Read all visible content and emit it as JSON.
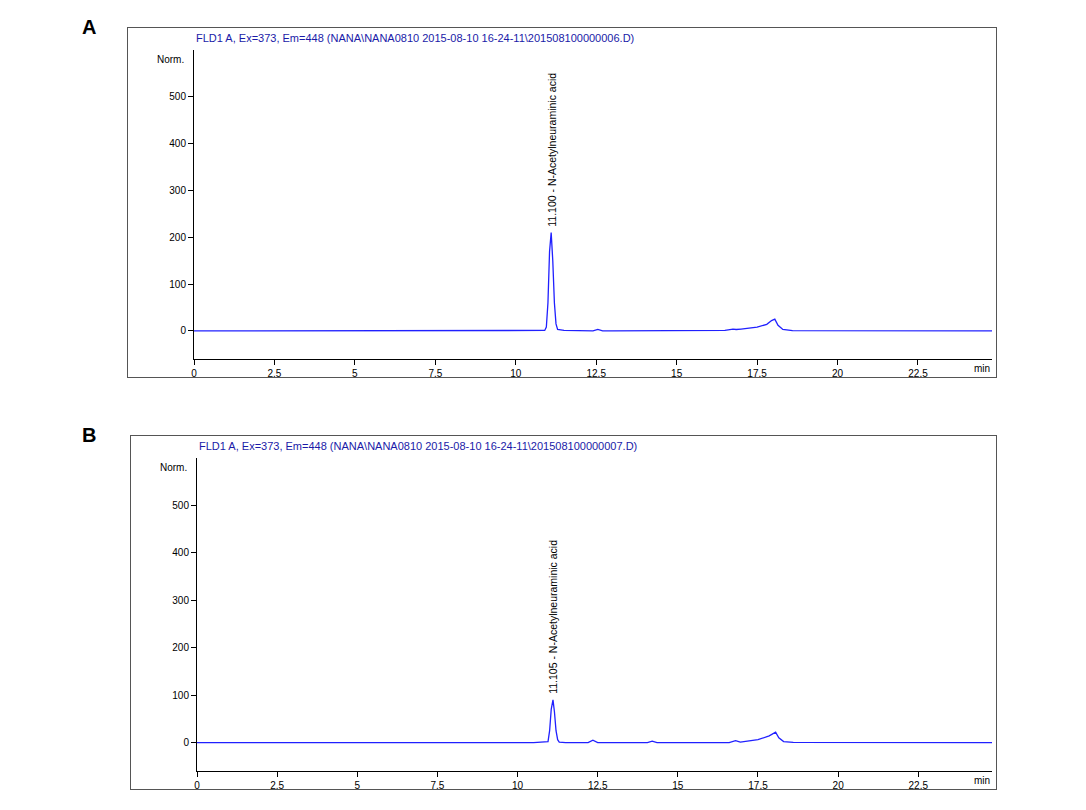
{
  "chart_data": [
    {
      "label": "A",
      "type": "line",
      "title": "FLD1 A, Ex=373, Em=448 (NANA\\NANA0810 2015-08-10 16-24-11\\201508100000006.D)",
      "xlabel": "min",
      "ylabel": "Norm.",
      "x": [
        0,
        10.5,
        10.9,
        10.95,
        11.0,
        11.05,
        11.1,
        11.15,
        11.2,
        11.25,
        11.3,
        11.5,
        12.4,
        12.55,
        12.7,
        13,
        14.1,
        14.25,
        14.4,
        16.5,
        16.75,
        16.85,
        17,
        17.5,
        17.8,
        17.95,
        18.05,
        18.15,
        18.3,
        18.6,
        24.8
      ],
      "values": [
        0,
        0,
        1,
        8,
        60,
        170,
        210,
        150,
        60,
        15,
        3,
        1,
        0,
        3,
        0,
        0,
        0,
        1.5,
        0,
        1,
        4,
        3,
        4,
        8,
        14,
        22,
        25,
        12,
        3,
        0.5,
        0
      ],
      "color": "#2020ff",
      "xlim": [
        0,
        24.8
      ],
      "ylim": [
        -60,
        600
      ],
      "xticks": [
        0,
        2.5,
        5,
        7.5,
        10,
        12.5,
        15,
        17.5,
        20,
        22.5
      ],
      "yticks": [
        0,
        100,
        200,
        300,
        400,
        500
      ],
      "grid": false,
      "annotations": [
        {
          "x": 11.1,
          "y": 210,
          "text": "11.100 - N-Acetylneuraminic acid"
        }
      ]
    },
    {
      "label": "B",
      "type": "line",
      "title": "FLD1 A, Ex=373, Em=448 (NANA\\NANA0810 2015-08-10 16-24-11\\201508100000007.D)",
      "xlabel": "min",
      "ylabel": "Norm.",
      "x": [
        0,
        10.5,
        10.95,
        11.0,
        11.05,
        11.105,
        11.15,
        11.2,
        11.25,
        11.3,
        11.5,
        12.2,
        12.35,
        12.5,
        14.05,
        14.2,
        14.35,
        16.6,
        16.8,
        16.95,
        17.5,
        17.85,
        18.05,
        18.15,
        18.3,
        18.6,
        24.8
      ],
      "values": [
        0,
        0,
        2,
        25,
        70,
        90,
        65,
        25,
        6,
        1,
        0,
        0,
        5,
        0,
        0,
        3,
        0,
        0,
        4,
        1,
        6,
        14,
        22,
        10,
        2,
        0.5,
        0
      ],
      "color": "#2020ff",
      "xlim": [
        0,
        24.8
      ],
      "ylim": [
        -60,
        600
      ],
      "xticks": [
        0,
        2.5,
        5,
        7.5,
        10,
        12.5,
        15,
        17.5,
        20,
        22.5
      ],
      "yticks": [
        0,
        100,
        200,
        300,
        400,
        500
      ],
      "grid": false,
      "annotations": [
        {
          "x": 11.105,
          "y": 90,
          "text": "11.105 - N-Acetylneuraminic acid"
        }
      ]
    }
  ]
}
